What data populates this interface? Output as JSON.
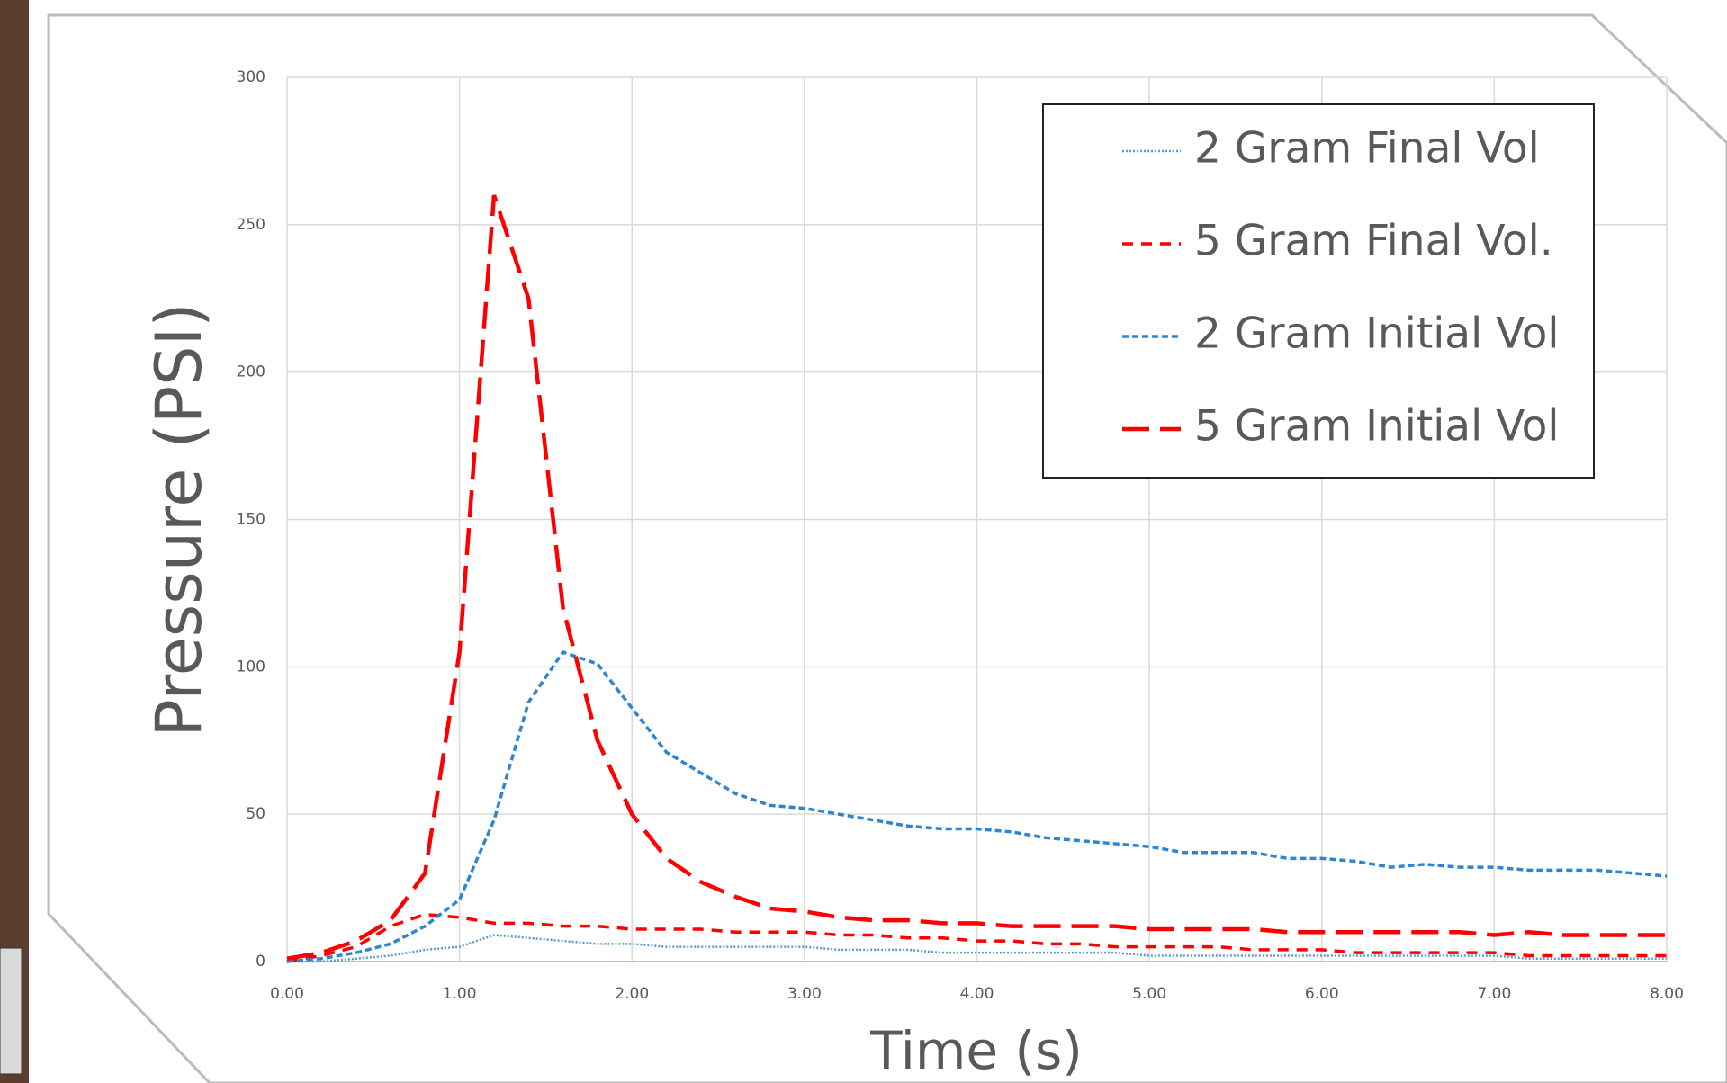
{
  "chart_data": {
    "type": "line",
    "x_label": "Time (s)",
    "y_label": "Pressure  (PSI)",
    "x": [
      0,
      0.2,
      0.4,
      0.6,
      0.8,
      1.0,
      1.2,
      1.4,
      1.6,
      1.8,
      2.0,
      2.2,
      2.4,
      2.6,
      2.8,
      3.0,
      3.2,
      3.4,
      3.6,
      3.8,
      4.0,
      4.2,
      4.4,
      4.6,
      4.8,
      5.0,
      5.2,
      5.4,
      5.6,
      5.8,
      6.0,
      6.2,
      6.4,
      6.6,
      6.8,
      7.0,
      7.2,
      7.4,
      7.6,
      7.8,
      8.0
    ],
    "series": [
      {
        "name": "2 Gram Final Vol",
        "color": "#5b9bd5",
        "dash": "dotted",
        "values": [
          0,
          0,
          1,
          2,
          4,
          5,
          9,
          8,
          7,
          6,
          6,
          5,
          5,
          5,
          5,
          5,
          4,
          4,
          4,
          3,
          3,
          3,
          3,
          3,
          3,
          2,
          2,
          2,
          2,
          2,
          2,
          2,
          2,
          2,
          2,
          2,
          1,
          1,
          1,
          1,
          1
        ]
      },
      {
        "name": "5 Gram Final Vol.",
        "color": "#ff0000",
        "dash": "short",
        "values": [
          0,
          2,
          5,
          12,
          16,
          15,
          13,
          13,
          12,
          12,
          11,
          11,
          11,
          10,
          10,
          10,
          9,
          9,
          8,
          8,
          7,
          7,
          6,
          6,
          5,
          5,
          5,
          5,
          4,
          4,
          4,
          3,
          3,
          3,
          3,
          3,
          2,
          2,
          2,
          2,
          2
        ]
      },
      {
        "name": "2 Gram Initial Vol",
        "color": "#2e86d0",
        "dash": "medium",
        "values": [
          0,
          1,
          3,
          6,
          12,
          21,
          48,
          88,
          105,
          101,
          86,
          71,
          64,
          57,
          53,
          52,
          50,
          48,
          46,
          45,
          45,
          44,
          42,
          41,
          40,
          39,
          37,
          37,
          37,
          35,
          35,
          34,
          32,
          33,
          32,
          32,
          31,
          31,
          31,
          30,
          29
        ]
      },
      {
        "name": "5 Gram Initial Vol",
        "color": "#ff0000",
        "dash": "long",
        "values": [
          1,
          3,
          7,
          14,
          30,
          105,
          260,
          225,
          120,
          75,
          50,
          35,
          27,
          22,
          18,
          17,
          15,
          14,
          14,
          13,
          13,
          12,
          12,
          12,
          12,
          11,
          11,
          11,
          11,
          10,
          10,
          10,
          10,
          10,
          10,
          9,
          10,
          9,
          9,
          9,
          9
        ]
      }
    ],
    "xlim": [
      0,
      8
    ],
    "ylim": [
      0,
      300
    ],
    "xticks": [
      {
        "value": 0,
        "label": "0.00"
      },
      {
        "value": 1,
        "label": "1.00"
      },
      {
        "value": 2,
        "label": "2.00"
      },
      {
        "value": 3,
        "label": "3.00"
      },
      {
        "value": 4,
        "label": "4.00"
      },
      {
        "value": 5,
        "label": "5.00"
      },
      {
        "value": 6,
        "label": "6.00"
      },
      {
        "value": 7,
        "label": "7.00"
      },
      {
        "value": 8,
        "label": "8.00"
      }
    ],
    "yticks": [
      0,
      50,
      100,
      150,
      200,
      250,
      300
    ],
    "grid": true,
    "legend": "top-right"
  }
}
